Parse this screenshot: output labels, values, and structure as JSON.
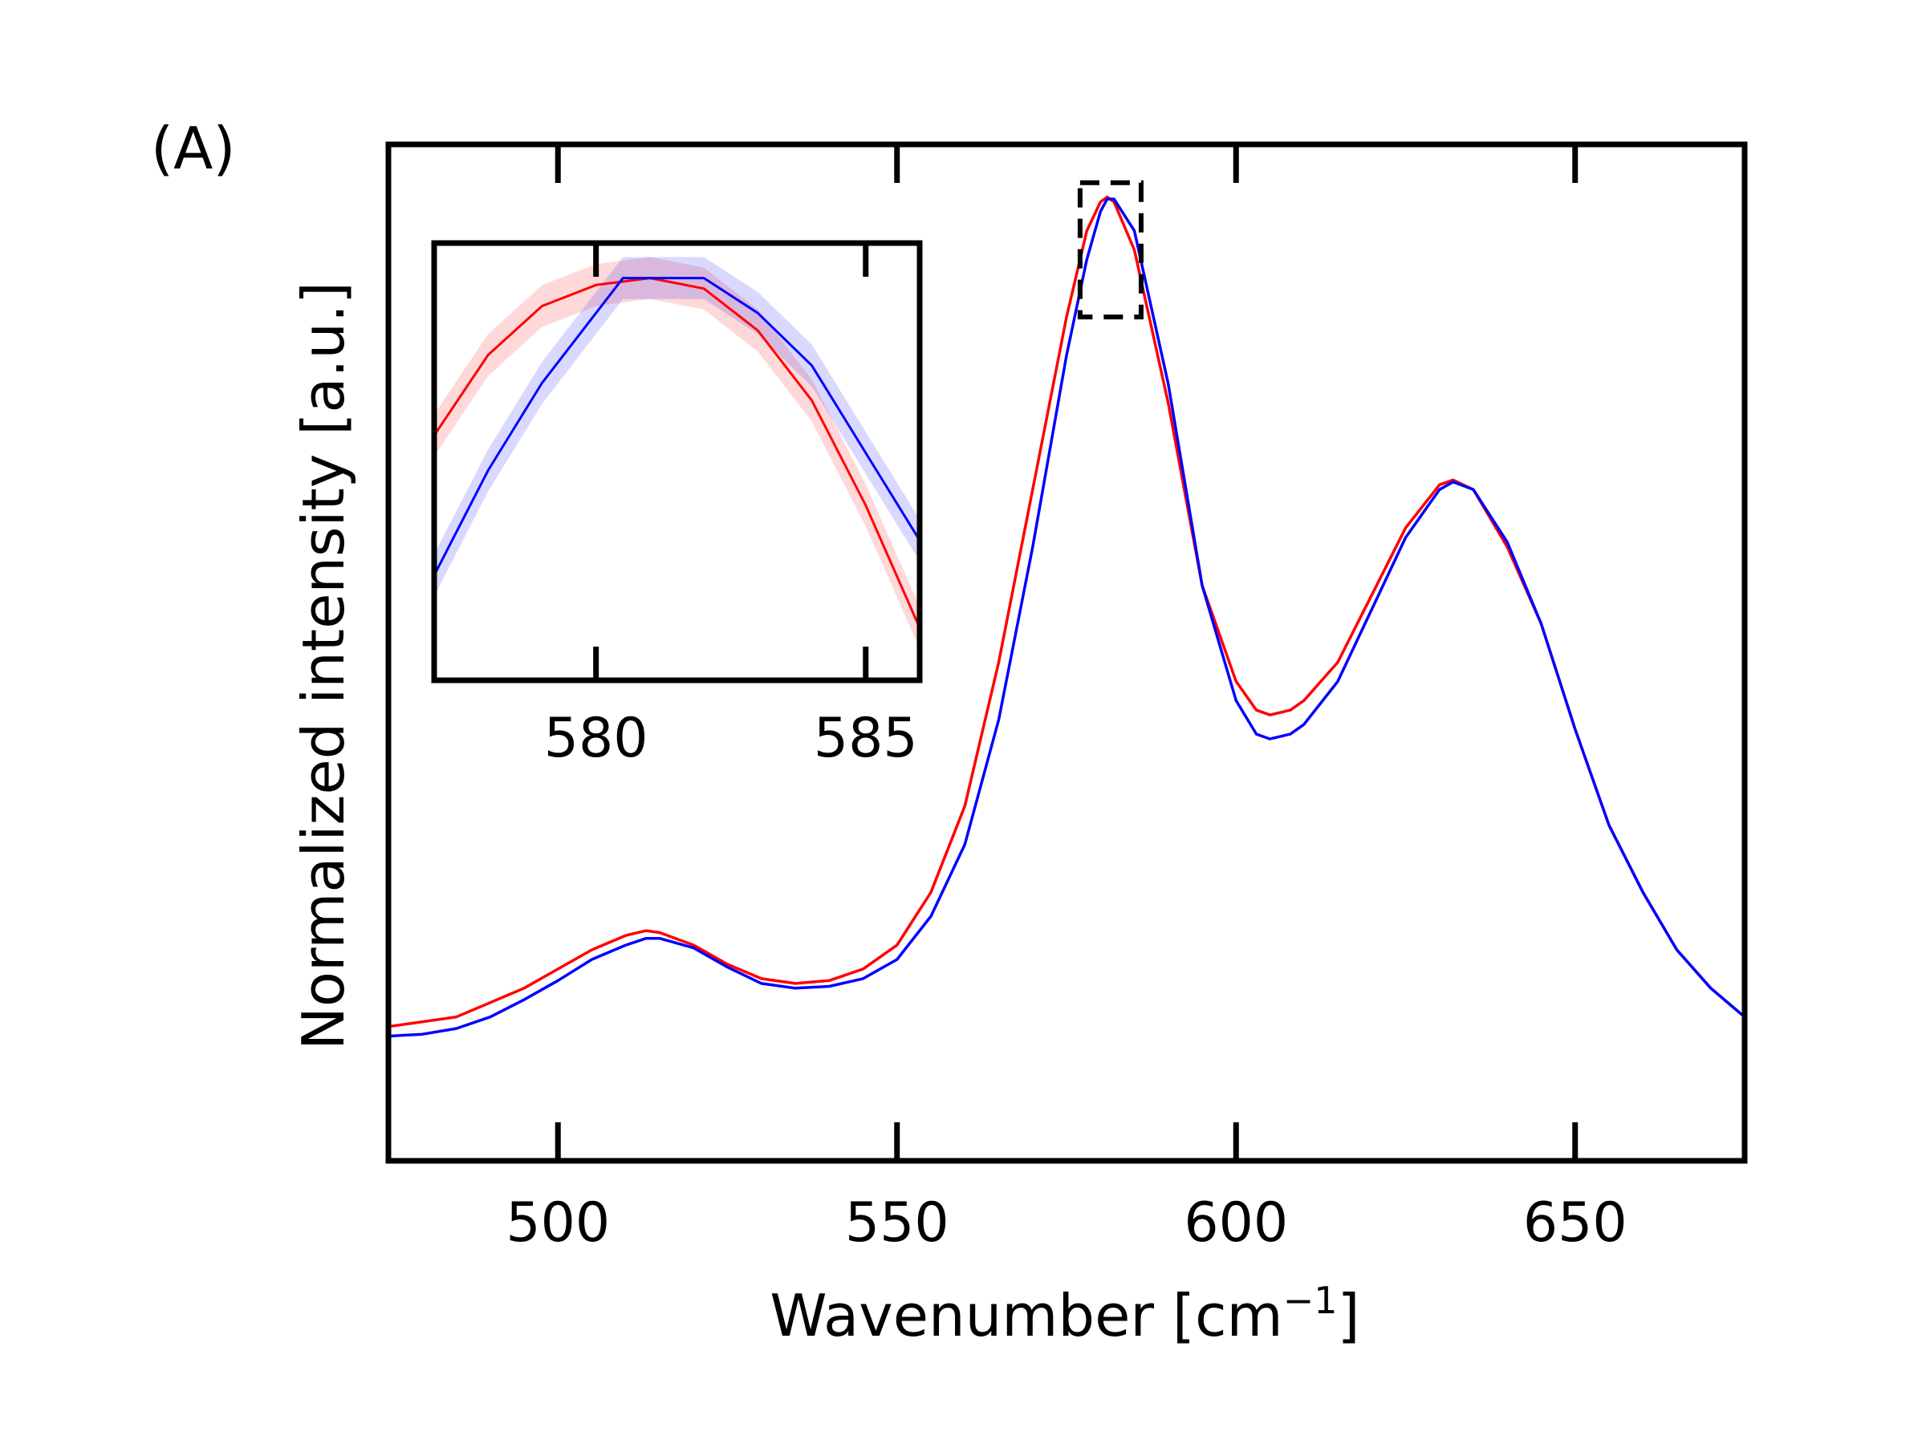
{
  "panel_label": "(A)",
  "chart_data": {
    "type": "line",
    "xlabel": "Wavenumber [cm",
    "xlabel_sup": "−1",
    "xlabel_end": "]",
    "ylabel": "Normalized intensity [a.u.]",
    "xlim": [
      475,
      675
    ],
    "ylim": [
      0,
      1.06
    ],
    "x_ticks": [
      500,
      550,
      600,
      650
    ],
    "x_tick_labels": [
      "500",
      "550",
      "600",
      "650"
    ],
    "y_ticks_shown": false,
    "colors": {
      "series_1": "#ff0000",
      "series_2": "#0000ff"
    },
    "series": [
      {
        "color": "#ff0000",
        "x": [
          475,
          480,
          485,
          490,
          495,
          500,
          505,
          510,
          513,
          515,
          520,
          525,
          530,
          535,
          540,
          545,
          550,
          555,
          560,
          565,
          570,
          575,
          578,
          580,
          581,
          582,
          585,
          590,
          595,
          600,
          603,
          605,
          608,
          610,
          615,
          620,
          625,
          630,
          632,
          635,
          640,
          645,
          650,
          655,
          660,
          665,
          670,
          675
        ],
        "y": [
          0.14,
          0.145,
          0.15,
          0.165,
          0.18,
          0.2,
          0.22,
          0.235,
          0.24,
          0.238,
          0.225,
          0.205,
          0.19,
          0.185,
          0.188,
          0.2,
          0.225,
          0.28,
          0.37,
          0.52,
          0.7,
          0.88,
          0.97,
          1.0,
          1.005,
          1.0,
          0.95,
          0.79,
          0.6,
          0.5,
          0.47,
          0.465,
          0.47,
          0.48,
          0.52,
          0.59,
          0.66,
          0.705,
          0.71,
          0.7,
          0.64,
          0.56,
          0.45,
          0.35,
          0.28,
          0.22,
          0.18,
          0.15
        ]
      },
      {
        "color": "#0000ff",
        "x": [
          475,
          480,
          485,
          490,
          495,
          500,
          505,
          510,
          513,
          515,
          520,
          525,
          530,
          535,
          540,
          545,
          550,
          555,
          560,
          565,
          570,
          575,
          578,
          580,
          581,
          582,
          585,
          590,
          595,
          600,
          603,
          605,
          608,
          610,
          615,
          620,
          625,
          630,
          632,
          635,
          640,
          645,
          650,
          655,
          660,
          665,
          670,
          675
        ],
        "y": [
          0.13,
          0.132,
          0.138,
          0.15,
          0.168,
          0.188,
          0.21,
          0.225,
          0.232,
          0.232,
          0.222,
          0.202,
          0.185,
          0.18,
          0.182,
          0.19,
          0.21,
          0.255,
          0.33,
          0.46,
          0.64,
          0.84,
          0.94,
          0.99,
          1.003,
          1.003,
          0.97,
          0.81,
          0.6,
          0.48,
          0.445,
          0.44,
          0.445,
          0.455,
          0.5,
          0.575,
          0.65,
          0.7,
          0.708,
          0.7,
          0.645,
          0.56,
          0.45,
          0.35,
          0.28,
          0.22,
          0.18,
          0.15
        ]
      }
    ],
    "highlight_box": {
      "x": [
        577,
        586
      ],
      "y": [
        0.88,
        1.02
      ]
    },
    "inset": {
      "xlim": [
        577,
        586
      ],
      "ylim": [
        0.885,
        1.01
      ],
      "x_ticks": [
        580,
        585
      ],
      "x_tick_labels": [
        "580",
        "585"
      ],
      "series": [
        {
          "color": "#ff0000",
          "band": 0.006,
          "x": [
            577,
            578,
            579,
            580,
            581,
            582,
            583,
            584,
            585,
            586
          ],
          "y": [
            0.955,
            0.978,
            0.992,
            0.998,
            1.0,
            0.997,
            0.985,
            0.965,
            0.935,
            0.9
          ]
        },
        {
          "color": "#0000ff",
          "band": 0.006,
          "x": [
            577,
            578,
            579,
            580,
            580.5,
            581,
            582,
            583,
            584,
            585,
            586
          ],
          "y": [
            0.915,
            0.945,
            0.97,
            0.99,
            1.0,
            1.0,
            1.0,
            0.99,
            0.975,
            0.95,
            0.925
          ]
        }
      ]
    }
  }
}
